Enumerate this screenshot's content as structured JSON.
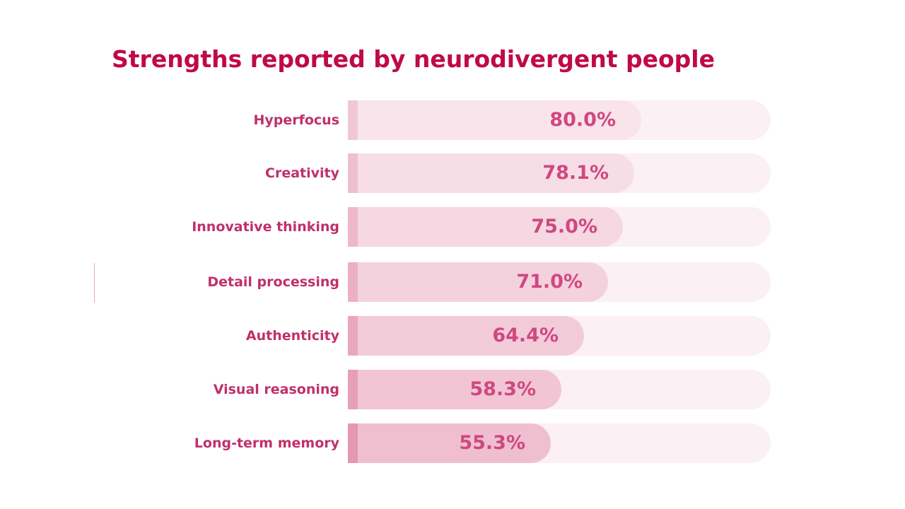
{
  "chart_data": {
    "type": "bar",
    "orientation": "horizontal",
    "title": "Strengths reported by neurodivergent people",
    "categories": [
      "Hyperfocus",
      "Creativity",
      "Innovative thinking",
      "Detail processing",
      "Authenticity",
      "Visual reasoning",
      "Long-term memory"
    ],
    "values": [
      80.0,
      78.1,
      75.0,
      71.0,
      64.4,
      58.3,
      55.3
    ],
    "value_labels": [
      "80.0%",
      "78.1%",
      "75.0%",
      "71.0%",
      "64.4%",
      "58.3%",
      "55.3%"
    ],
    "xlim": [
      0,
      100
    ],
    "grid": false,
    "legend": "none"
  },
  "colors": {
    "title": "#c0094a",
    "label": "#c0306a",
    "value": "#d04880",
    "track": "#fbf0f3",
    "bar_light": "#f8e4ea",
    "bar_dark": "#efbfd0",
    "edge_light": "#f0c8d5",
    "edge_dark": "#e597b3",
    "rule": "#e6a9be"
  }
}
